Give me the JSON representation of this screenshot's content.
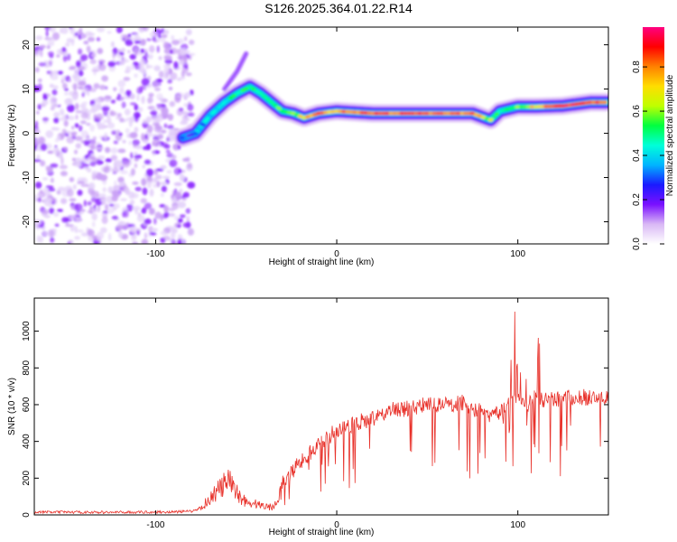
{
  "title": "S126.2025.364.01.22.R14",
  "chart_data": [
    {
      "type": "heatmap",
      "xlabel": "Height of straight line (km)",
      "ylabel": "Frequency (Hz)",
      "xlim": [
        -167,
        150
      ],
      "ylim": [
        -25,
        24
      ],
      "xticks": [
        -100,
        0,
        100
      ],
      "yticks": [
        -20,
        -10,
        0,
        10,
        20
      ],
      "colorbar": {
        "label": "Normalized spectral amplitude",
        "range": [
          0,
          0.98
        ],
        "ticks": [
          "0.0",
          "0.2",
          "0.4",
          "0.6",
          "0.8"
        ],
        "tick_values": [
          0.0,
          0.2,
          0.4,
          0.6,
          0.8
        ],
        "colormap": [
          "#ffffff",
          "#d9b8f5",
          "#7a10ff",
          "#1a1aff",
          "#00b4ff",
          "#00ffd9",
          "#00ff40",
          "#c0ff00",
          "#ffdd00",
          "#ff8000",
          "#ff0000",
          "#ff0080"
        ]
      },
      "noise_region_x": [
        -167,
        -80
      ],
      "ridge": [
        {
          "x": -85,
          "y": -1,
          "amp": 0.25
        },
        {
          "x": -78,
          "y": 0,
          "amp": 0.3
        },
        {
          "x": -70,
          "y": 4,
          "amp": 0.4
        },
        {
          "x": -62,
          "y": 7,
          "amp": 0.45
        },
        {
          "x": -55,
          "y": 9,
          "amp": 0.5
        },
        {
          "x": -48,
          "y": 10.5,
          "amp": 0.55
        },
        {
          "x": -42,
          "y": 9,
          "amp": 0.5
        },
        {
          "x": -36,
          "y": 7,
          "amp": 0.5
        },
        {
          "x": -30,
          "y": 5,
          "amp": 0.55
        },
        {
          "x": -24,
          "y": 4.5,
          "amp": 0.55
        },
        {
          "x": -18,
          "y": 3.5,
          "amp": 0.75
        },
        {
          "x": -10,
          "y": 4.5,
          "amp": 0.8
        },
        {
          "x": 0,
          "y": 5,
          "amp": 0.8
        },
        {
          "x": 20,
          "y": 4.5,
          "amp": 0.85
        },
        {
          "x": 40,
          "y": 4.5,
          "amp": 0.85
        },
        {
          "x": 60,
          "y": 4.5,
          "amp": 0.85
        },
        {
          "x": 75,
          "y": 4.5,
          "amp": 0.8
        },
        {
          "x": 85,
          "y": 3,
          "amp": 0.6
        },
        {
          "x": 90,
          "y": 5,
          "amp": 0.5
        },
        {
          "x": 100,
          "y": 6,
          "amp": 0.55
        },
        {
          "x": 110,
          "y": 6,
          "amp": 0.75
        },
        {
          "x": 125,
          "y": 6.2,
          "amp": 0.9
        },
        {
          "x": 140,
          "y": 7,
          "amp": 0.9
        },
        {
          "x": 150,
          "y": 7,
          "amp": 0.85
        }
      ],
      "spur": [
        {
          "x": -62,
          "y": 10
        },
        {
          "x": -55,
          "y": 14
        },
        {
          "x": -50,
          "y": 18
        }
      ]
    },
    {
      "type": "line",
      "xlabel": "Height of straight line (km)",
      "ylabel": "SNR (10 * v/v)",
      "xlim": [
        -167,
        150
      ],
      "ylim": [
        0,
        1180
      ],
      "xticks": [
        -100,
        0,
        100
      ],
      "yticks": [
        0,
        200,
        400,
        600,
        800,
        1000
      ],
      "series": [
        {
          "name": "SNR",
          "color": "#e8312a",
          "x": [
            -167,
            -150,
            -130,
            -110,
            -90,
            -80,
            -75,
            -70,
            -65,
            -60,
            -55,
            -50,
            -45,
            -40,
            -35,
            -30,
            -25,
            -20,
            -15,
            -10,
            -5,
            0,
            10,
            20,
            30,
            40,
            50,
            60,
            70,
            75,
            80,
            85,
            90,
            95,
            100,
            105,
            110,
            115,
            120,
            130,
            140,
            150
          ],
          "y": [
            15,
            15,
            14,
            15,
            16,
            20,
            40,
            90,
            140,
            180,
            120,
            70,
            60,
            50,
            40,
            170,
            240,
            280,
            340,
            380,
            420,
            460,
            500,
            520,
            570,
            580,
            600,
            600,
            610,
            570,
            560,
            540,
            560,
            600,
            640,
            600,
            640,
            620,
            630,
            640,
            640,
            630
          ]
        }
      ]
    }
  ]
}
